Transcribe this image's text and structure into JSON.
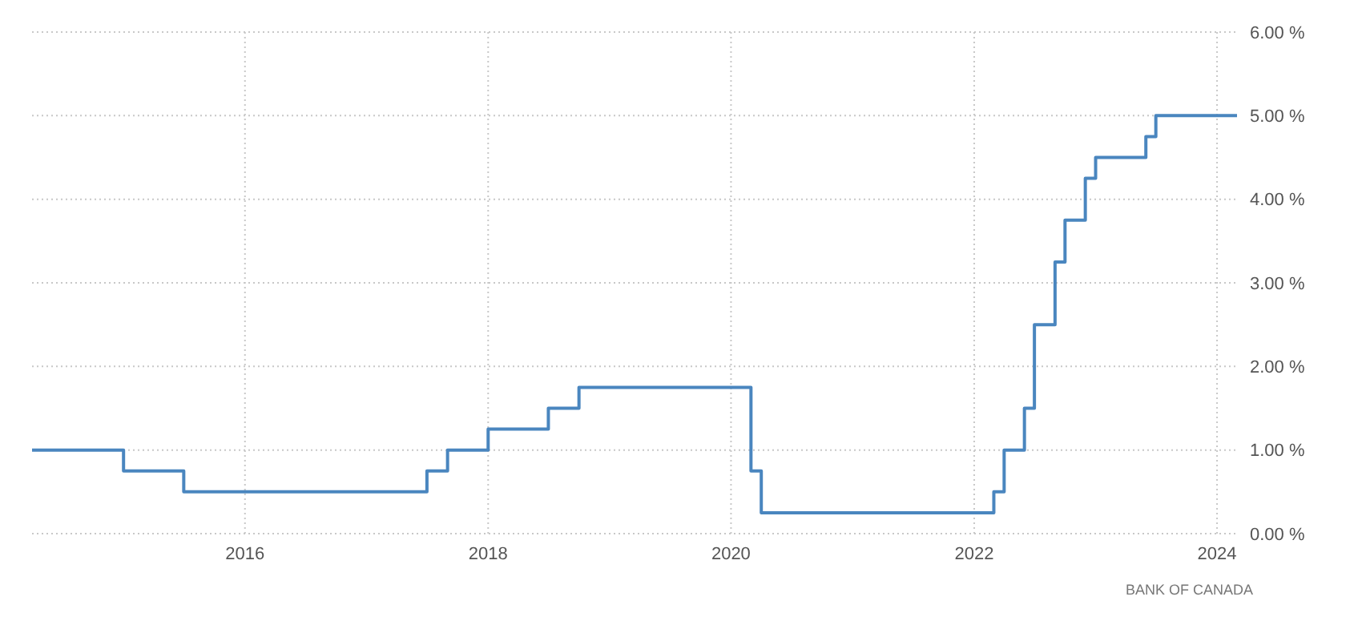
{
  "chart_data": {
    "type": "step",
    "x": [
      "2014-04",
      "2015-01",
      "2015-07",
      "2017-07",
      "2017-09",
      "2018-01",
      "2018-07",
      "2018-10",
      "2020-03",
      "2020-04",
      "2022-03",
      "2022-04",
      "2022-06",
      "2022-07",
      "2022-09",
      "2022-10",
      "2022-12",
      "2023-01",
      "2023-06",
      "2023-07",
      "2024-03"
    ],
    "series": [
      {
        "color": "#4a86bf",
        "values": [
          1.0,
          0.75,
          0.5,
          0.75,
          1.0,
          1.25,
          1.5,
          1.75,
          0.75,
          0.25,
          0.5,
          1.0,
          1.5,
          2.5,
          3.25,
          3.75,
          4.25,
          4.5,
          4.75,
          5.0,
          5.0
        ]
      }
    ],
    "xlim": [
      "2014-04",
      "2024-03"
    ],
    "xticks": [
      {
        "value": "2016",
        "label": "2016"
      },
      {
        "value": "2018",
        "label": "2018"
      },
      {
        "value": "2020",
        "label": "2020"
      },
      {
        "value": "2022",
        "label": "2022"
      },
      {
        "value": "2024",
        "label": "2024"
      }
    ],
    "ylim": [
      0,
      6
    ],
    "yticks": [
      {
        "value": 0,
        "label": "0.00 %"
      },
      {
        "value": 1,
        "label": "1.00 %"
      },
      {
        "value": 2,
        "label": "2.00 %"
      },
      {
        "value": 3,
        "label": "3.00 %"
      },
      {
        "value": 4,
        "label": "4.00 %"
      },
      {
        "value": 5,
        "label": "5.00 %"
      },
      {
        "value": 6,
        "label": "6.00 %"
      }
    ],
    "grid": true,
    "annotations": [
      "BANK OF CANADA"
    ]
  }
}
